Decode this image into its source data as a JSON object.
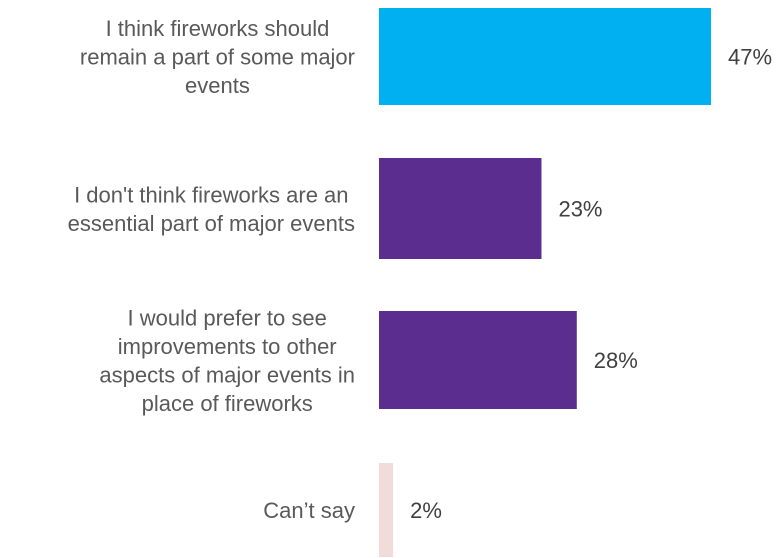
{
  "chart_data": {
    "type": "bar",
    "orientation": "horizontal",
    "categories": [
      "I think fireworks should remain a part of some major events",
      "I don't think fireworks are an essential part of major events",
      "I would prefer to see improvements to other aspects of major events in place of fireworks",
      "Can’t say"
    ],
    "category_lines": [
      [
        "I think fireworks should",
        "remain a part of some major",
        "events"
      ],
      [
        "I don't think fireworks are an",
        "essential part of major events"
      ],
      [
        "I would prefer to see",
        "improvements to other",
        "aspects of major events in",
        "place of fireworks"
      ],
      [
        "Can’t say"
      ]
    ],
    "values": [
      47,
      23,
      28,
      2
    ],
    "value_labels": [
      "47%",
      "23%",
      "28%",
      "2%"
    ],
    "colors": [
      "#00b0f0",
      "#5b2d8e",
      "#5b2d8e",
      "#f2dcdb"
    ],
    "unit": "%",
    "xlim": [
      0,
      47
    ],
    "grid": false,
    "legend": "none"
  }
}
